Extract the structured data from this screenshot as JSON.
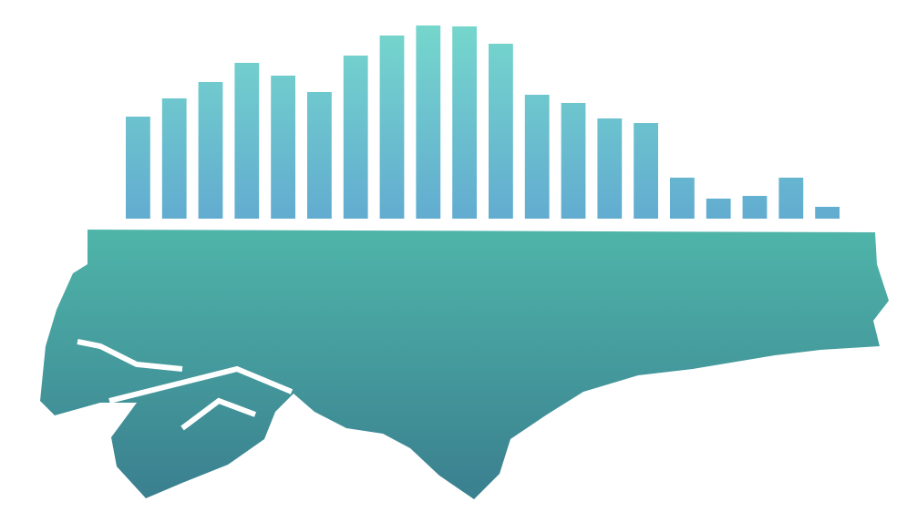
{
  "chart_data": {
    "type": "bar",
    "categories": [
      null,
      null,
      null,
      null,
      null,
      null,
      null,
      null,
      null,
      null,
      null,
      null,
      null,
      null,
      null,
      null,
      null,
      null,
      null,
      null
    ],
    "values": [
      112,
      132,
      150,
      171,
      157,
      139,
      179,
      201,
      212,
      211,
      192,
      136,
      127,
      110,
      105,
      45,
      22,
      25,
      45,
      13
    ],
    "gradient": [
      "#76d8cc",
      "#62acd0"
    ],
    "ylim": [
      0,
      220
    ]
  }
}
